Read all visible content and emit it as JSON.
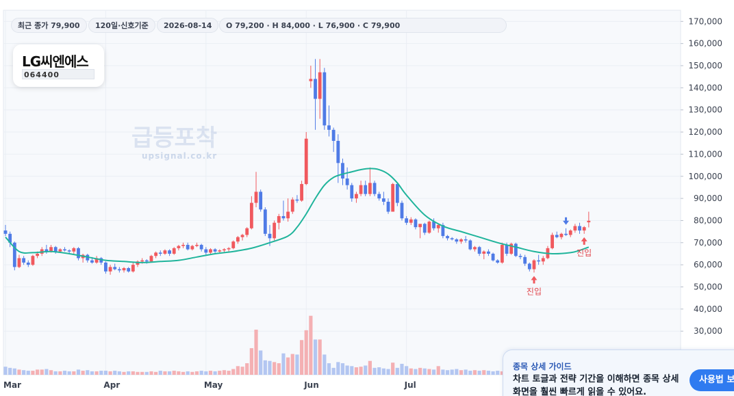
{
  "header": {
    "close_label": "최근 종가 79,900",
    "setting_label": "120일·신호기준",
    "date_label": "2026-08-14",
    "ohlc_label": "O 79,200 · H 84,000 · L 76,900 · C 79,900"
  },
  "logo": {
    "name": "LG씨엔에스",
    "code": "064400"
  },
  "watermark": {
    "title": "급등포착",
    "url": "upsignal.co.kr"
  },
  "guide": {
    "title": "종목 상세 가이드",
    "body": "차트 토글과 전략 기간을 이해하면 종목 상세 화면을 훨씬 빠르게 읽을 수 있어요.",
    "button_label": "사용법 보기"
  },
  "colors": {
    "up": "#f0595e",
    "down": "#4f7be6",
    "up_volume": "#f4b0b3",
    "down_volume": "#b3c6f1",
    "ma": "#1fb49b",
    "grid": "#eaeef4"
  },
  "chart_data": {
    "type": "candlestick",
    "x_labels": [
      "Mar",
      "Apr",
      "May",
      "Jun",
      "Jul"
    ],
    "x_label_index": [
      0,
      22,
      44,
      66,
      88
    ],
    "ylim": [
      20000,
      175000
    ],
    "y_ticks": [
      "30,000",
      "40,000",
      "50,000",
      "60,000",
      "70,000",
      "80,000",
      "90,000",
      "100,000",
      "110,000",
      "120,000",
      "130,000",
      "140,000",
      "150,000",
      "160,000",
      "170,000"
    ],
    "y_tick_values": [
      30000,
      40000,
      50000,
      60000,
      70000,
      80000,
      90000,
      100000,
      110000,
      120000,
      130000,
      140000,
      150000,
      160000,
      170000
    ],
    "ohlc": [
      [
        75500,
        78000,
        73000,
        74000
      ],
      [
        74000,
        75000,
        68000,
        70000
      ],
      [
        70000,
        70500,
        57500,
        59000
      ],
      [
        59000,
        64500,
        58500,
        63000
      ],
      [
        63000,
        64000,
        60000,
        61000
      ],
      [
        61000,
        62000,
        59000,
        60000
      ],
      [
        60000,
        64500,
        59500,
        64000
      ],
      [
        64000,
        66000,
        63000,
        65000
      ],
      [
        65000,
        68000,
        64000,
        67000
      ],
      [
        67000,
        69000,
        65000,
        66000
      ],
      [
        66000,
        69000,
        65500,
        68000
      ],
      [
        68000,
        68500,
        65000,
        66000
      ],
      [
        66000,
        67500,
        65500,
        67000
      ],
      [
        67000,
        68000,
        66000,
        66500
      ],
      [
        66500,
        67000,
        65000,
        66000
      ],
      [
        66000,
        68000,
        65000,
        67500
      ],
      [
        67500,
        68000,
        62000,
        63000
      ],
      [
        63000,
        65000,
        61000,
        64500
      ],
      [
        64500,
        65000,
        61000,
        62000
      ],
      [
        62000,
        63500,
        60500,
        61000
      ],
      [
        61000,
        64000,
        60500,
        63000
      ],
      [
        63000,
        63500,
        60000,
        61000
      ],
      [
        61000,
        61500,
        56000,
        57000
      ],
      [
        57000,
        60000,
        55500,
        59000
      ],
      [
        59000,
        60500,
        57500,
        58000
      ],
      [
        58000,
        59000,
        56500,
        57500
      ],
      [
        57500,
        59000,
        56500,
        58500
      ],
      [
        58500,
        59000,
        56500,
        57000
      ],
      [
        57000,
        61000,
        56500,
        60000
      ],
      [
        60000,
        62000,
        59000,
        61500
      ],
      [
        61500,
        63000,
        60500,
        62000
      ],
      [
        62000,
        62500,
        60500,
        61500
      ],
      [
        61500,
        64500,
        61000,
        64000
      ],
      [
        64000,
        66000,
        63000,
        65500
      ],
      [
        65500,
        66500,
        64000,
        65000
      ],
      [
        65000,
        67000,
        64500,
        66500
      ],
      [
        66500,
        67000,
        64000,
        65000
      ],
      [
        65000,
        68000,
        64500,
        67500
      ],
      [
        67500,
        69000,
        66500,
        68500
      ],
      [
        68500,
        70000,
        67500,
        69000
      ],
      [
        69000,
        70000,
        66500,
        67000
      ],
      [
        67000,
        69000,
        66500,
        68500
      ],
      [
        68500,
        70000,
        68000,
        69000
      ],
      [
        69000,
        69500,
        66000,
        67000
      ],
      [
        67000,
        68000,
        64500,
        65500
      ],
      [
        65500,
        67500,
        65000,
        67000
      ],
      [
        67000,
        67500,
        65000,
        66000
      ],
      [
        66000,
        67000,
        65000,
        66500
      ],
      [
        66500,
        67500,
        65500,
        67000
      ],
      [
        67000,
        68000,
        66000,
        67500
      ],
      [
        67500,
        71000,
        67000,
        70500
      ],
      [
        70500,
        73000,
        69500,
        72500
      ],
      [
        72500,
        74000,
        71000,
        73500
      ],
      [
        73500,
        77000,
        72500,
        76500
      ],
      [
        76500,
        91000,
        76000,
        88000
      ],
      [
        88000,
        102000,
        86000,
        93000
      ],
      [
        93000,
        94000,
        84000,
        85000
      ],
      [
        85000,
        86000,
        73000,
        74000
      ],
      [
        74000,
        78000,
        68500,
        72000
      ],
      [
        72000,
        80000,
        71000,
        79000
      ],
      [
        79000,
        83000,
        76000,
        82000
      ],
      [
        82000,
        89000,
        80000,
        81000
      ],
      [
        81000,
        90000,
        79500,
        84000
      ],
      [
        84000,
        90500,
        83000,
        89500
      ],
      [
        89500,
        91500,
        88000,
        89000
      ],
      [
        89000,
        98000,
        88500,
        96500
      ],
      [
        96500,
        120000,
        96000,
        117000
      ],
      [
        143000,
        150000,
        140000,
        144000
      ],
      [
        144000,
        153000,
        121000,
        135000
      ],
      [
        135000,
        153000,
        126000,
        147000
      ],
      [
        147000,
        149000,
        121000,
        123000
      ],
      [
        123000,
        132000,
        118000,
        121000
      ],
      [
        121000,
        122000,
        111000,
        116000
      ],
      [
        116000,
        119000,
        97000,
        106000
      ],
      [
        106000,
        108000,
        96000,
        99000
      ],
      [
        99000,
        104000,
        94000,
        96000
      ],
      [
        96000,
        97000,
        88500,
        90000
      ],
      [
        90000,
        93000,
        88000,
        92000
      ],
      [
        92000,
        98000,
        91000,
        96000
      ],
      [
        96000,
        98000,
        91000,
        92000
      ],
      [
        92000,
        104000,
        91000,
        97000
      ],
      [
        97000,
        98000,
        91000,
        92000
      ],
      [
        92000,
        93000,
        89000,
        90000
      ],
      [
        90000,
        93000,
        87000,
        88500
      ],
      [
        88500,
        90000,
        83000,
        84000
      ],
      [
        84000,
        97000,
        84000,
        96500
      ],
      [
        96500,
        97000,
        86500,
        88000
      ],
      [
        88000,
        89000,
        80000,
        81000
      ],
      [
        81000,
        82000,
        78000,
        79000
      ],
      [
        79000,
        81500,
        78000,
        80500
      ],
      [
        80500,
        81000,
        76000,
        77000
      ],
      [
        77000,
        77500,
        72000,
        78500
      ],
      [
        78500,
        79000,
        73500,
        74500
      ],
      [
        74500,
        80000,
        74000,
        79500
      ],
      [
        79500,
        81000,
        75500,
        76500
      ],
      [
        76500,
        78500,
        74500,
        78000
      ],
      [
        78000,
        79000,
        72000,
        73000
      ],
      [
        73000,
        73500,
        71000,
        72000
      ],
      [
        72000,
        72500,
        71000,
        71500
      ],
      [
        71500,
        72000,
        69500,
        70500
      ],
      [
        70500,
        72000,
        69500,
        71500
      ],
      [
        71500,
        73000,
        70000,
        71000
      ],
      [
        71000,
        71500,
        66500,
        67000
      ],
      [
        67000,
        68500,
        66000,
        68000
      ],
      [
        68000,
        68500,
        64000,
        65000
      ],
      [
        65000,
        66500,
        62500,
        66000
      ],
      [
        66000,
        67000,
        64000,
        65000
      ],
      [
        65000,
        65500,
        61500,
        62000
      ],
      [
        62000,
        62500,
        60500,
        61000
      ],
      [
        61000,
        70000,
        60500,
        69000
      ],
      [
        69000,
        70000,
        64000,
        65000
      ],
      [
        65000,
        70000,
        64500,
        69500
      ],
      [
        69500,
        70000,
        63500,
        64000
      ],
      [
        64000,
        65000,
        62500,
        63500
      ],
      [
        63500,
        64500,
        59500,
        60500
      ],
      [
        60500,
        61000,
        57000,
        58000
      ],
      [
        58000,
        62500,
        56500,
        62000
      ],
      [
        62000,
        64500,
        60000,
        61500
      ],
      [
        61500,
        64000,
        60000,
        63000
      ],
      [
        63000,
        68500,
        62500,
        67500
      ],
      [
        67500,
        74500,
        67000,
        73500
      ],
      [
        73500,
        75000,
        72000,
        72500
      ],
      [
        72500,
        74500,
        71500,
        74000
      ],
      [
        74000,
        76500,
        73000,
        73500
      ],
      [
        73500,
        76000,
        72500,
        75500
      ],
      [
        75500,
        78500,
        74500,
        77500
      ],
      [
        77500,
        79000,
        74000,
        75500
      ],
      [
        75500,
        77500,
        74000,
        77000
      ],
      [
        79200,
        84000,
        76900,
        79900
      ]
    ],
    "volume": [
      14,
      12,
      11,
      9,
      8,
      7,
      7,
      9,
      9,
      10,
      8,
      6,
      6,
      7,
      6,
      6,
      9,
      7,
      8,
      6,
      6,
      7,
      7,
      6,
      7,
      6,
      5,
      6,
      6,
      5,
      5,
      5,
      6,
      5,
      7,
      6,
      6,
      7,
      6,
      5,
      6,
      5,
      6,
      7,
      6,
      7,
      6,
      7,
      8,
      7,
      10,
      15,
      14,
      20,
      46,
      78,
      42,
      25,
      24,
      22,
      20,
      37,
      30,
      36,
      35,
      60,
      77,
      102,
      61,
      61,
      35,
      20,
      12,
      22,
      20,
      16,
      15,
      13,
      14,
      16,
      24,
      12,
      13,
      11,
      10,
      21,
      12,
      19,
      15,
      11,
      10,
      12,
      11,
      10,
      9,
      15,
      9,
      8,
      9,
      10,
      8,
      9,
      7,
      8,
      7,
      8,
      7,
      6,
      7,
      6,
      15,
      8,
      12,
      8,
      10,
      9,
      10,
      8,
      10,
      14,
      19,
      12,
      13,
      11,
      14,
      14,
      11,
      12,
      17
    ],
    "volume_max": 130,
    "ma": {
      "index": [
        0,
        3,
        6,
        10,
        14,
        18,
        22,
        26,
        30,
        34,
        38,
        42,
        46,
        50,
        54,
        58,
        62,
        64,
        66,
        68,
        70,
        72,
        74,
        76,
        78,
        80,
        82,
        84,
        86,
        88,
        92,
        96,
        100,
        104,
        108,
        112,
        116,
        120,
        124,
        126,
        128
      ],
      "values": [
        72500,
        66000,
        65500,
        66000,
        65000,
        63500,
        62000,
        61500,
        61000,
        61500,
        62000,
        63500,
        65000,
        66000,
        67500,
        70000,
        73000,
        77000,
        83000,
        90000,
        96000,
        99500,
        101000,
        102000,
        103000,
        103500,
        103000,
        101000,
        97000,
        91500,
        82500,
        77500,
        75000,
        72500,
        70000,
        68000,
        66000,
        65000,
        65500,
        66500,
        68000
      ]
    },
    "markers": [
      {
        "index": 116,
        "type": "entry",
        "text": "진입",
        "direction": "up"
      },
      {
        "index": 127,
        "type": "entry",
        "text": "진입",
        "direction": "up"
      },
      {
        "index": 123,
        "type": "signal",
        "text": "",
        "direction": "down"
      }
    ]
  }
}
